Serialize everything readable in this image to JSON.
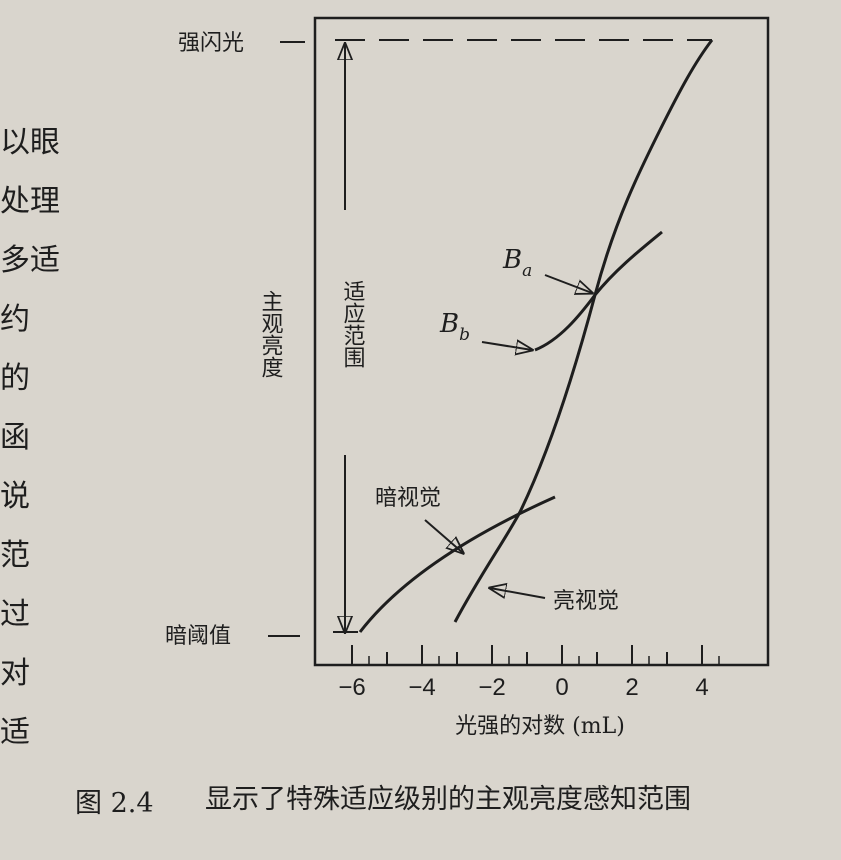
{
  "left_text": [
    "以眼",
    "处理",
    "多适",
    "约",
    "的",
    "函",
    "说",
    "范",
    "过",
    "对",
    "适"
  ],
  "figure": {
    "y_labels": {
      "top": "强闪光",
      "bottom": "暗阈值"
    },
    "y_axis_label": "主观亮度",
    "range_label": "适应范围",
    "x_ticks": [
      "−6",
      "−4",
      "−2",
      "0",
      "2",
      "4"
    ],
    "x_axis_label": "光强的对数 (mL)",
    "curve_labels": {
      "ba_main": "B",
      "ba_sub": "a",
      "bb_main": "B",
      "bb_sub": "b",
      "scotopic": "暗视觉",
      "photopic": "亮视觉"
    }
  },
  "caption": {
    "number": "图 2.4",
    "text": "显示了特殊适应级别的主观亮度感知范围"
  }
}
